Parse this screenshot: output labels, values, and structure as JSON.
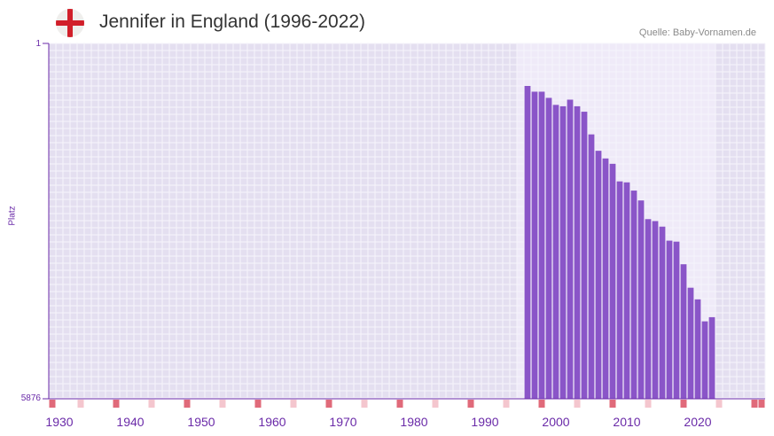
{
  "header": {
    "title": "Jennifer in England (1996-2022)",
    "source": "Quelle: Baby-Vornamen.de",
    "flag_icon": "england-flag-icon"
  },
  "colors": {
    "bar": "#8a55c8",
    "plot_bg": "#e4dff0",
    "highlight_bg": "#efeaf8",
    "grid": "#f6f4fb",
    "decade_marker": "#e06a7a",
    "half_decade_marker": "#f4c6ce",
    "axis_text": "#6a2aa8"
  },
  "chart_data": {
    "type": "bar",
    "title": "Jennifer in England (1996-2022)",
    "xlabel": "",
    "ylabel": "Platz",
    "ylim": [
      5876,
      1
    ],
    "y_ticks": [
      "1",
      "5876"
    ],
    "x_ticks": [
      "1930",
      "1940",
      "1950",
      "1960",
      "1970",
      "1980",
      "1990",
      "2000",
      "2010",
      "2020"
    ],
    "xlim": [
      1929,
      2029
    ],
    "highlight_range": [
      1996,
      2022
    ],
    "years": [
      1996,
      1997,
      1998,
      1999,
      2000,
      2001,
      2002,
      2003,
      2004,
      2005,
      2006,
      2007,
      2008,
      2009,
      2010,
      2011,
      2012,
      2013,
      2014,
      2015,
      2016,
      2017,
      2018,
      2019,
      2020,
      2021,
      2022
    ],
    "values": [
      704,
      799,
      799,
      901,
      1017,
      1040,
      931,
      1040,
      1130,
      1505,
      1776,
      1903,
      1991,
      2282,
      2298,
      2434,
      2597,
      2906,
      2938,
      3030,
      3262,
      3278,
      3652,
      4040,
      4232,
      4596,
      4527
    ]
  }
}
